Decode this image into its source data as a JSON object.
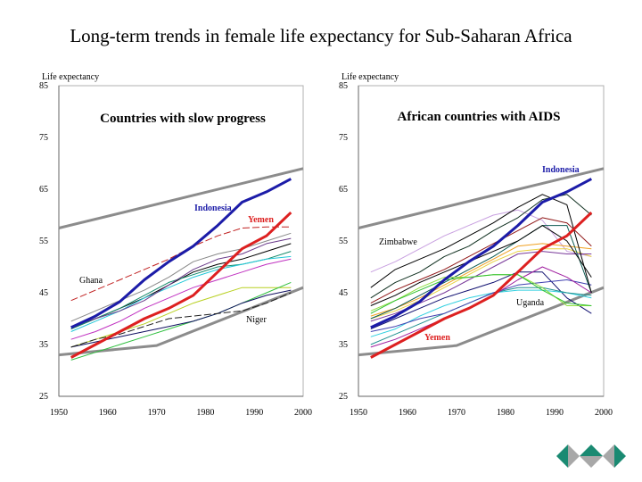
{
  "slide": {
    "title": "Long-term trends in female life expectancy for Sub-Saharan Africa"
  },
  "colors": {
    "indonesia": "#1c1ca8",
    "yemen": "#dd2020",
    "envelope": "#8c8c8c",
    "nav_green": "#1a8a72",
    "nav_grey": "#a8a8a8"
  },
  "nav": [
    "previous-slide",
    "home",
    "next-slide"
  ],
  "chart_data": [
    {
      "type": "line",
      "title": "Countries with slow progress",
      "ylabel": "Life expectancy",
      "xlabel": "",
      "xlim": [
        1950,
        2000
      ],
      "ylim": [
        25,
        85
      ],
      "xticks": [
        "1950",
        "1960",
        "1970",
        "1980",
        "1990",
        "2000"
      ],
      "yticks": [
        "25",
        "35",
        "45",
        "55",
        "65",
        "75",
        "85"
      ],
      "x": [
        1952.5,
        1957.5,
        1962.5,
        1967.5,
        1972.5,
        1977.5,
        1982.5,
        1987.5,
        1992.5,
        1997.5
      ],
      "envelopes": [
        {
          "name": "upper bound",
          "x": [
            1950,
            2000
          ],
          "values": [
            57.5,
            69
          ]
        },
        {
          "name": "lower bound",
          "x": [
            1950,
            1970,
            2000
          ],
          "values": [
            33,
            34.8,
            46
          ]
        }
      ],
      "series": [
        {
          "name": "other-1",
          "color": "#888888",
          "values": [
            39.5,
            41.5,
            43.5,
            45.5,
            48,
            51,
            52.5,
            53.5,
            55,
            56.5
          ]
        },
        {
          "name": "other-2",
          "color": "#000000",
          "values": [
            38,
            40,
            42,
            44,
            46.5,
            49,
            50.5,
            51.5,
            53,
            54.5
          ]
        },
        {
          "name": "other-3",
          "color": "#138a6a",
          "values": [
            38,
            40,
            42,
            44.5,
            47,
            48.5,
            50,
            50.5,
            51.5,
            53
          ]
        },
        {
          "name": "other-4",
          "color": "#22c8d8",
          "values": [
            37.5,
            39.5,
            41.5,
            44,
            46,
            48,
            49.5,
            50.5,
            51.5,
            52
          ]
        },
        {
          "name": "other-5",
          "color": "#c030c0",
          "values": [
            36,
            37.5,
            39.5,
            42,
            44,
            46,
            47.5,
            49,
            50.5,
            51.5
          ]
        },
        {
          "name": "other-6",
          "color": "#6a3a8a",
          "values": [
            38.5,
            40,
            41.5,
            43.5,
            46.5,
            49.5,
            51.5,
            52.5,
            54.5,
            55.5
          ]
        },
        {
          "name": "other-7",
          "color": "#b8d020",
          "values": [
            34.5,
            36,
            37.5,
            39,
            41,
            43,
            44.5,
            46,
            46,
            46
          ]
        },
        {
          "name": "other-8",
          "color": "#30c040",
          "values": [
            32,
            33.5,
            35,
            36.5,
            38,
            39.5,
            41,
            43,
            45,
            47
          ]
        },
        {
          "name": "other-9",
          "color": "#101060",
          "values": [
            34.5,
            35.5,
            36.5,
            37.5,
            38.5,
            39.5,
            41,
            43,
            44.5,
            45.5
          ]
        },
        {
          "name": "Ghana",
          "color": "#c02020",
          "values": [
            43.5,
            45.5,
            47.5,
            49.5,
            51.5,
            54,
            56,
            57.5,
            57.7,
            57.7
          ]
        },
        {
          "name": "Niger",
          "color": "#202020",
          "values": [
            34.5,
            36,
            37,
            38.5,
            40,
            40.5,
            41,
            41.5,
            43,
            45
          ]
        },
        {
          "name": "Indonesia",
          "color": "#1c1ca8",
          "values": [
            38.3,
            40.5,
            43.3,
            47.5,
            51,
            54,
            58,
            62.5,
            64.5,
            67
          ],
          "bold": true
        },
        {
          "name": "Yemen",
          "color": "#dd2020",
          "values": [
            32.5,
            35,
            37.5,
            40,
            42,
            44.5,
            49,
            53.5,
            56,
            60.5
          ],
          "bold": true
        }
      ],
      "annotations": [
        {
          "text": "Indonesia",
          "color": "#1c1ca8",
          "bold": true
        },
        {
          "text": "Yemen",
          "color": "#dd2020",
          "bold": true
        },
        {
          "text": "Ghana",
          "color": "#000000",
          "bold": false
        },
        {
          "text": "Niger",
          "color": "#000000",
          "bold": false
        }
      ]
    },
    {
      "type": "line",
      "title": "African countries with AIDS",
      "ylabel": "Life expectancy",
      "xlabel": "",
      "xlim": [
        1950,
        2000
      ],
      "ylim": [
        25,
        85
      ],
      "xticks": [
        "1950",
        "1960",
        "1970",
        "1980",
        "1990",
        "2000"
      ],
      "yticks": [
        "25",
        "35",
        "45",
        "55",
        "65",
        "75",
        "85"
      ],
      "x": [
        1952.5,
        1957.5,
        1962.5,
        1967.5,
        1972.5,
        1977.5,
        1982.5,
        1987.5,
        1992.5,
        1997.5
      ],
      "envelopes": [
        {
          "name": "upper bound",
          "x": [
            1950,
            2000
          ],
          "values": [
            57.5,
            69
          ]
        },
        {
          "name": "lower bound",
          "x": [
            1950,
            1970,
            2000
          ],
          "values": [
            33,
            34.8,
            46
          ]
        }
      ],
      "series": [
        {
          "name": "other-a",
          "color": "#c8a0e0",
          "values": [
            49,
            51,
            53.5,
            56,
            58,
            60,
            61,
            59,
            53,
            52
          ]
        },
        {
          "name": "other-b",
          "color": "#103020",
          "values": [
            44,
            47,
            49,
            52,
            54,
            57,
            59.5,
            63,
            64,
            60
          ]
        },
        {
          "name": "other-c",
          "color": "#901818",
          "values": [
            43,
            45.5,
            47.5,
            49.5,
            52,
            54.5,
            57,
            59.5,
            58.5,
            54
          ]
        },
        {
          "name": "other-e",
          "color": "#f0a020",
          "values": [
            40.5,
            42,
            44,
            46.5,
            49,
            51.5,
            54,
            54.5,
            54,
            53.5
          ]
        },
        {
          "name": "other-f",
          "color": "#e8d040",
          "values": [
            40,
            41.5,
            43.5,
            46,
            48.5,
            51,
            53,
            53.5,
            53.5,
            52
          ]
        },
        {
          "name": "other-g",
          "color": "#7a3a9a",
          "values": [
            39.5,
            41,
            43,
            45,
            47.5,
            50,
            52.5,
            53,
            52.5,
            52.5
          ]
        },
        {
          "name": "other-h",
          "color": "#101070",
          "values": [
            38,
            40,
            42,
            44,
            45.5,
            47,
            49,
            49,
            44,
            41
          ]
        },
        {
          "name": "other-i",
          "color": "#30d0e0",
          "values": [
            36.5,
            38,
            40.5,
            42.5,
            44,
            45,
            45.5,
            45.5,
            45,
            44
          ]
        },
        {
          "name": "other-j",
          "color": "#209090",
          "values": [
            35,
            37,
            39,
            41,
            43,
            45,
            46,
            46,
            45,
            44.5
          ]
        },
        {
          "name": "other-k",
          "color": "#4040b0",
          "values": [
            37.5,
            38.5,
            40,
            41,
            43,
            45,
            46.5,
            47,
            47.5,
            46.5
          ]
        },
        {
          "name": "other-l",
          "color": "#0c5a50",
          "values": [
            40,
            42,
            44.5,
            47,
            49.5,
            52,
            55,
            58,
            58,
            45
          ]
        },
        {
          "name": "other-m",
          "color": "#a020a0",
          "values": [
            34.5,
            36,
            38,
            40,
            42,
            44.5,
            47.5,
            50,
            48,
            45
          ]
        },
        {
          "name": "other-n",
          "color": "#000000",
          "values": [
            42.5,
            44.5,
            47,
            49,
            51,
            53,
            55,
            58,
            55,
            48
          ]
        },
        {
          "name": "other-o",
          "color": "#90e040",
          "values": [
            41.5,
            43.5,
            46,
            48,
            48,
            48.5,
            48.5,
            46,
            42.5,
            42.5
          ]
        },
        {
          "name": "Zimbabwe",
          "color": "#000000",
          "values": [
            46,
            49.5,
            51.5,
            53.5,
            56,
            58.5,
            61.5,
            64,
            62,
            45
          ]
        },
        {
          "name": "Uganda",
          "color": "#30c030",
          "values": [
            41,
            43.5,
            45.5,
            47.5,
            48,
            48.5,
            48.5,
            45.5,
            43,
            42.5
          ]
        },
        {
          "name": "Indonesia",
          "color": "#1c1ca8",
          "values": [
            38.3,
            40.5,
            43.3,
            47.5,
            51,
            54,
            58,
            62.5,
            64.5,
            67
          ],
          "bold": true
        },
        {
          "name": "Yemen",
          "color": "#dd2020",
          "values": [
            32.5,
            35,
            37.5,
            40,
            42,
            44.5,
            49,
            53.5,
            56,
            60.5
          ],
          "bold": true
        }
      ],
      "annotations": [
        {
          "text": "Indonesia",
          "color": "#1c1ca8",
          "bold": true
        },
        {
          "text": "Zimbabwe",
          "color": "#000000",
          "bold": false
        },
        {
          "text": "Uganda",
          "color": "#000000",
          "bold": false
        },
        {
          "text": "Yemen",
          "color": "#dd2020",
          "bold": true
        }
      ]
    }
  ]
}
